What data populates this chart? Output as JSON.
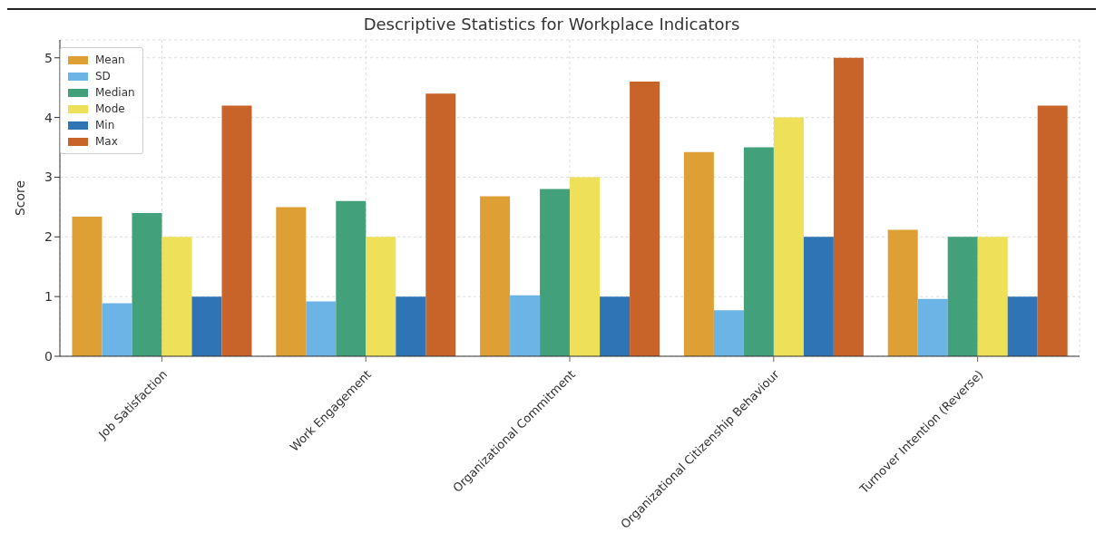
{
  "chart_data": {
    "type": "bar",
    "title": "Descriptive Statistics for Workplace Indicators",
    "ylabel": "Score",
    "categories": [
      "Job Satisfaction",
      "Work Engagement",
      "Organizational Commitment",
      "Organizational Citizenship Behaviour",
      "Turnover Intention (Reverse)"
    ],
    "series": [
      {
        "name": "Mean",
        "color": "#dea035",
        "values": [
          2.34,
          2.5,
          2.68,
          3.42,
          2.12
        ]
      },
      {
        "name": "SD",
        "color": "#6cb3e6",
        "values": [
          0.89,
          0.92,
          1.02,
          0.77,
          0.96
        ]
      },
      {
        "name": "Median",
        "color": "#42a07a",
        "values": [
          2.4,
          2.6,
          2.8,
          3.5,
          2
        ]
      },
      {
        "name": "Mode",
        "color": "#efe05a",
        "values": [
          2,
          2,
          3,
          4,
          2
        ]
      },
      {
        "name": "Min",
        "color": "#2f74b5",
        "values": [
          1,
          1,
          1,
          2,
          1
        ]
      },
      {
        "name": "Max",
        "color": "#c8632a",
        "values": [
          4.2,
          4.4,
          4.6,
          5,
          4.2
        ]
      }
    ],
    "ylim": [
      0,
      5.3
    ],
    "yticks": [
      0,
      1,
      2,
      3,
      4,
      5
    ],
    "grid": true,
    "legend": "top left"
  }
}
